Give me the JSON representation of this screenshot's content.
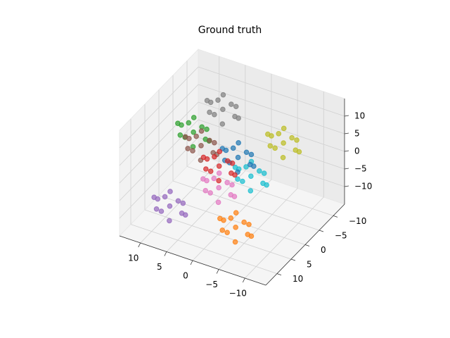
{
  "chart_data": {
    "type": "scatter3d",
    "title": "Ground truth",
    "xlim": [
      -14,
      14
    ],
    "ylim": [
      -14,
      14
    ],
    "zlim": [
      -15,
      15
    ],
    "xticks": [
      {
        "value": -10,
        "label": "−10"
      },
      {
        "value": -5,
        "label": "−5"
      },
      0,
      5,
      10
    ],
    "yticks": [
      {
        "value": -10,
        "label": "−10"
      },
      {
        "value": -5,
        "label": "−5"
      },
      0,
      5,
      10
    ],
    "zticks": [
      {
        "value": -10,
        "label": "−10"
      },
      {
        "value": -5,
        "label": "−5"
      },
      0,
      5,
      10
    ],
    "grid": true,
    "series": [
      {
        "color": "#7f7f7f",
        "x": [
          5,
          7,
          3,
          6,
          4,
          8,
          2,
          5,
          5,
          6.5,
          3.5,
          7
        ],
        "y": [
          -6,
          -5,
          -7,
          -8,
          -4,
          -6,
          -6,
          -3,
          -9,
          -4.5,
          -7.5,
          -8
        ],
        "z": [
          9,
          8,
          10,
          11,
          7,
          10,
          8,
          10,
          8,
          11.5,
          6.5,
          9
        ]
      },
      {
        "color": "#bcbd22",
        "x": [
          -5,
          -3,
          -7,
          -4,
          -6,
          -2,
          -8,
          -5,
          -5,
          -3.5,
          -6.5,
          -3
        ],
        "y": [
          -9,
          -8,
          -10,
          -11,
          -7,
          -9,
          -9,
          -6,
          -12,
          -7.5,
          -10.5,
          -11
        ],
        "z": [
          2,
          1,
          3,
          4,
          0,
          3,
          1,
          3,
          1,
          4.5,
          -0.5,
          2
        ]
      },
      {
        "color": "#17becf",
        "x": [
          -2,
          0,
          -4,
          -1,
          -3,
          1,
          -5,
          -2,
          -2,
          -0.5,
          -3.5,
          0
        ],
        "y": [
          -3,
          -2,
          -4,
          -5,
          -1,
          -3,
          -3,
          0,
          -6,
          -1.5,
          -4.5,
          -5
        ],
        "z": [
          -4,
          -5,
          -3,
          -2,
          -6,
          -3,
          -5,
          -3,
          -5,
          -1.5,
          -6.5,
          -4
        ]
      },
      {
        "color": "#1f77b4",
        "x": [
          1,
          3,
          -1,
          2,
          0,
          4,
          -2,
          1,
          1,
          2.5,
          -0.5,
          3
        ],
        "y": [
          -4,
          -3,
          -5,
          -6,
          -2,
          -4,
          -4,
          -1,
          -7,
          -2.5,
          -5.5,
          -6
        ],
        "z": [
          -1,
          -2,
          0,
          1,
          -3,
          0,
          -2,
          0,
          -2,
          1.5,
          -3.5,
          -1
        ]
      },
      {
        "color": "#2ca02c",
        "x": [
          9,
          11,
          7,
          10,
          8,
          12,
          6,
          9,
          9,
          10.5,
          7.5,
          11
        ],
        "y": [
          -3,
          -2,
          -4,
          -5,
          -1,
          -3,
          -3,
          0,
          -6,
          -1.5,
          -4.5,
          -5
        ],
        "z": [
          3,
          2,
          4,
          5,
          1,
          4,
          2,
          4,
          2,
          5.5,
          0.5,
          3
        ]
      },
      {
        "color": "#8c564b",
        "x": [
          7,
          9,
          5,
          8,
          6,
          10,
          4,
          7,
          7,
          8.5,
          5.5,
          9
        ],
        "y": [
          -2,
          -1,
          -3,
          -4,
          0,
          -2,
          -2,
          1,
          -5,
          -0.5,
          -3.5,
          -4
        ],
        "z": [
          1,
          0,
          2,
          3,
          -1,
          2,
          0,
          2,
          0,
          3.5,
          -1.5,
          1
        ]
      },
      {
        "color": "#d62728",
        "x": [
          3,
          5,
          1,
          4,
          2,
          6,
          0,
          3,
          3,
          4.5,
          1.5,
          5
        ],
        "y": [
          -1,
          0,
          -2,
          -3,
          1,
          -1,
          -1,
          2,
          -4,
          0.5,
          -2.5,
          -3
        ],
        "z": [
          -2,
          -3,
          -1,
          0,
          -4,
          -1,
          -3,
          -1,
          -3,
          0.5,
          -4.5,
          -2
        ]
      },
      {
        "color": "#9467bd",
        "x": [
          6,
          8,
          4,
          7,
          5,
          9,
          3,
          6,
          6,
          7.5,
          4.5,
          8
        ],
        "y": [
          11,
          12,
          10,
          9,
          13,
          11,
          11,
          14,
          8,
          12.5,
          9.5,
          9
        ],
        "z": [
          -5,
          -6,
          -4,
          -3,
          -7,
          -4,
          -6,
          -4,
          -6,
          -2.5,
          -7.5,
          -5
        ]
      },
      {
        "color": "#e377c2",
        "x": [
          2,
          4,
          0,
          3,
          1,
          5,
          -1,
          2,
          2,
          3.5,
          0.5,
          4
        ],
        "y": [
          1,
          2,
          0,
          -1,
          3,
          1,
          1,
          4,
          -2,
          2.5,
          -0.5,
          -1
        ],
        "z": [
          -6,
          -7,
          -5,
          -4,
          -8,
          -5,
          -7,
          -5,
          -7,
          -3.5,
          -8.5,
          -6
        ]
      },
      {
        "color": "#ff7f0e",
        "x": [
          -5,
          -3,
          -7,
          -4,
          -6,
          -2,
          -8,
          -5,
          -5,
          -3.5,
          -6.5,
          -3
        ],
        "y": [
          8,
          9,
          7,
          6,
          10,
          8,
          8,
          11,
          5,
          9.5,
          6.5,
          6
        ],
        "z": [
          -8,
          -9,
          -7,
          -6,
          -10,
          -7,
          -9,
          -7,
          -9,
          -5.5,
          -10.5,
          -8
        ]
      }
    ]
  }
}
